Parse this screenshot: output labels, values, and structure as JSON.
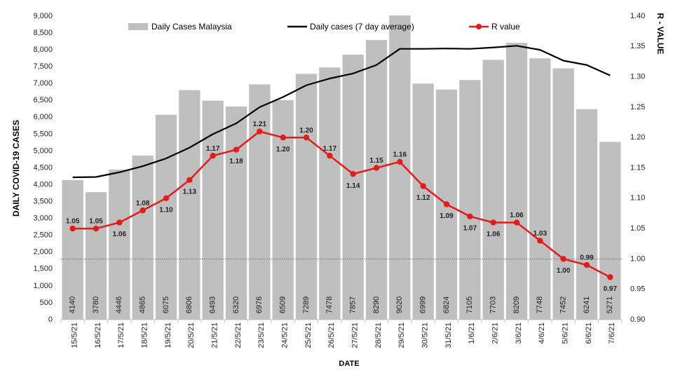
{
  "chart_data": {
    "type": "bar",
    "xlabel": "DATE",
    "ylabel": "DAILY COVID-19 CASES",
    "y2label": "R - VALUE",
    "ylim": [
      0,
      9000
    ],
    "y2lim": [
      0.9,
      1.4
    ],
    "yticks": [
      "0",
      "500",
      "1,000",
      "1,500",
      "2,000",
      "2,500",
      "3,000",
      "3,500",
      "4,000",
      "4,500",
      "5,000",
      "5,500",
      "6,000",
      "6,500",
      "7,000",
      "7,500",
      "8,000",
      "8,500",
      "9,000"
    ],
    "y2ticks": [
      "0.90",
      "0.95",
      "1.00",
      "1.05",
      "1.10",
      "1.15",
      "1.20",
      "1.25",
      "1.30",
      "1.35",
      "1.40"
    ],
    "legend_position": "top",
    "reference_line": 1.0,
    "categories": [
      "15/5/21",
      "16/5/21",
      "17/5/21",
      "18/5/21",
      "19/5/21",
      "20/5/21",
      "21/5/21",
      "22/5/21",
      "23/5/21",
      "24/5/21",
      "25/5/21",
      "26/5/21",
      "27/5/21",
      "28/5/21",
      "29/5/21",
      "30/5/21",
      "31/5/21",
      "1/6/21",
      "2/6/21",
      "3/6/21",
      "4/6/21",
      "5/6/21",
      "6/6/21",
      "7/6/21"
    ],
    "series": [
      {
        "name": "Daily Cases Malaysia",
        "type": "bar",
        "axis": "left",
        "color": "#bfbfbf",
        "values": [
          4140,
          3780,
          4446,
          4865,
          6075,
          6806,
          6493,
          6320,
          6976,
          6509,
          7289,
          7478,
          7857,
          8290,
          9020,
          6999,
          6824,
          7105,
          7703,
          8209,
          7748,
          7452,
          6241,
          5271
        ],
        "value_labels": [
          "4140",
          "3780",
          "4446",
          "4865",
          "6075",
          "6806",
          "6493",
          "6320",
          "6976",
          "6509",
          "7289",
          "7478",
          "7857",
          "8290",
          "9020",
          "6999",
          "6824",
          "7105",
          "7703",
          "8209",
          "7748",
          "7452",
          "6241",
          "5271"
        ]
      },
      {
        "name": "Daily cases (7 day average)",
        "type": "line",
        "axis": "left",
        "color": "#000000",
        "values": [
          4220,
          4230,
          4370,
          4550,
          4780,
          5100,
          5500,
          5820,
          6300,
          6600,
          6950,
          7150,
          7300,
          7550,
          8030,
          8030,
          8040,
          8030,
          8070,
          8120,
          8000,
          7680,
          7550,
          7240
        ]
      },
      {
        "name": "R value",
        "type": "line",
        "axis": "right",
        "color": "#e31b1b",
        "values": [
          1.05,
          1.05,
          1.06,
          1.08,
          1.1,
          1.13,
          1.17,
          1.18,
          1.21,
          1.2,
          1.2,
          1.17,
          1.14,
          1.15,
          1.16,
          1.12,
          1.09,
          1.07,
          1.06,
          1.06,
          1.03,
          1.0,
          0.99,
          0.97
        ],
        "value_labels": [
          "1.05",
          "1.05",
          "1.06",
          "1.08",
          "1.10",
          "1.13",
          "1.17",
          "1.18",
          "1.21",
          "1.20",
          "1.20",
          "1.17",
          "1.14",
          "1.15",
          "1.16",
          "1.12",
          "1.09",
          "1.07",
          "1.06",
          "1.06",
          "1.03",
          "1.00",
          "0.99",
          "0.97"
        ]
      }
    ]
  }
}
